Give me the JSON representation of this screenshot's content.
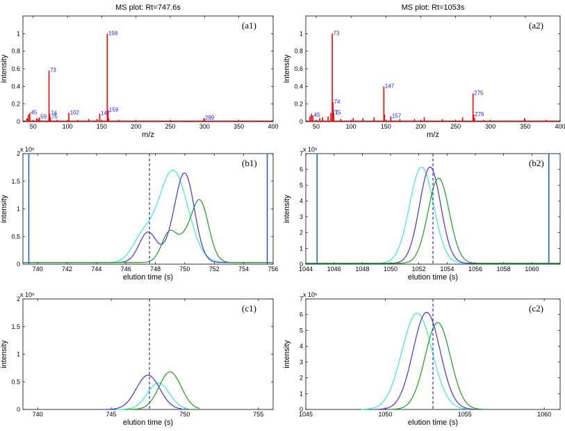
{
  "colors": {
    "stem": "#ff0000",
    "peak_label": "#1a1aff",
    "cyan": "#33f0c8",
    "purple": "#4b2be0",
    "green": "#1e9a1e",
    "marker": "#2233cc",
    "window": "#2e5cc8"
  },
  "chart_data": [
    {
      "id": "a1",
      "type": "stem",
      "title": "MS plot: Rt=747.6s",
      "tag": "(a1)",
      "xlabel": "m/z",
      "ylabel": "Intensity",
      "xlim": [
        35,
        400
      ],
      "ylim": [
        0,
        1.2
      ],
      "xticks": [
        50,
        100,
        150,
        200,
        250,
        300,
        350,
        400
      ],
      "xticklabels": [
        "50",
        "100",
        "150",
        "200",
        "250",
        "300",
        "350",
        "400"
      ],
      "yticks": [
        0,
        0.2,
        0.4,
        0.6,
        0.8,
        1
      ],
      "yticklabels": [
        "0",
        "0.2",
        "0.4",
        "0.6",
        "0.8",
        "1"
      ],
      "peaks": [
        {
          "mz": 41,
          "y": 0.04
        },
        {
          "mz": 42,
          "y": 0.03
        },
        {
          "mz": 43,
          "y": 0.08
        },
        {
          "mz": 45,
          "y": 0.1
        },
        {
          "mz": 55,
          "y": 0.04
        },
        {
          "mz": 57,
          "y": 0.03
        },
        {
          "mz": 59,
          "y": 0.05
        },
        {
          "mz": 73,
          "y": 0.58
        },
        {
          "mz": 74,
          "y": 0.09
        },
        {
          "mz": 75,
          "y": 0.05
        },
        {
          "mz": 85,
          "y": 0.02
        },
        {
          "mz": 102,
          "y": 0.1
        },
        {
          "mz": 115,
          "y": 0.02
        },
        {
          "mz": 131,
          "y": 0.03
        },
        {
          "mz": 143,
          "y": 0.03
        },
        {
          "mz": 147,
          "y": 0.09
        },
        {
          "mz": 158,
          "y": 1.0
        },
        {
          "mz": 159,
          "y": 0.13
        },
        {
          "mz": 160,
          "y": 0.04
        },
        {
          "mz": 175,
          "y": 0.02
        },
        {
          "mz": 200,
          "y": 0.01
        },
        {
          "mz": 230,
          "y": 0.01
        },
        {
          "mz": 270,
          "y": 0.01
        },
        {
          "mz": 299,
          "y": 0.04
        },
        {
          "mz": 300,
          "y": 0.02
        },
        {
          "mz": 340,
          "y": 0.01
        },
        {
          "mz": 380,
          "y": 0.01
        }
      ],
      "labels": [
        {
          "text": "45",
          "mz": 45,
          "y": 0.1
        },
        {
          "text": "59",
          "mz": 59,
          "y": 0.05
        },
        {
          "text": "73",
          "mz": 73,
          "y": 0.58
        },
        {
          "text": "74",
          "mz": 74,
          "y": 0.09
        },
        {
          "text": "75",
          "mz": 75,
          "y": 0.05
        },
        {
          "text": "102",
          "mz": 102,
          "y": 0.1
        },
        {
          "text": "147",
          "mz": 147,
          "y": 0.09
        },
        {
          "text": "158",
          "mz": 158,
          "y": 1.0
        },
        {
          "text": "159",
          "mz": 159,
          "y": 0.13
        },
        {
          "text": "299",
          "mz": 299,
          "y": 0.04
        }
      ]
    },
    {
      "id": "a2",
      "type": "stem",
      "title": "MS plot: Rt=1053s",
      "tag": "(a2)",
      "xlabel": "m/z",
      "ylabel": "Intensity",
      "xlim": [
        35,
        400
      ],
      "ylim": [
        0,
        1.2
      ],
      "xticks": [
        50,
        100,
        150,
        200,
        250,
        300,
        350,
        400
      ],
      "xticklabels": [
        "50",
        "100",
        "150",
        "200",
        "250",
        "300",
        "350",
        "400"
      ],
      "yticks": [
        0,
        0.2,
        0.4,
        0.6,
        0.8,
        1
      ],
      "yticklabels": [
        "0",
        "0.2",
        "0.4",
        "0.6",
        "0.8",
        "1"
      ],
      "peaks": [
        {
          "mz": 41,
          "y": 0.06
        },
        {
          "mz": 43,
          "y": 0.09
        },
        {
          "mz": 45,
          "y": 0.07
        },
        {
          "mz": 55,
          "y": 0.04
        },
        {
          "mz": 59,
          "y": 0.05
        },
        {
          "mz": 67,
          "y": 0.06
        },
        {
          "mz": 71,
          "y": 0.1
        },
        {
          "mz": 73,
          "y": 1.0
        },
        {
          "mz": 74,
          "y": 0.22
        },
        {
          "mz": 75,
          "y": 0.1
        },
        {
          "mz": 85,
          "y": 0.03
        },
        {
          "mz": 103,
          "y": 0.04
        },
        {
          "mz": 117,
          "y": 0.04
        },
        {
          "mz": 133,
          "y": 0.05
        },
        {
          "mz": 147,
          "y": 0.4
        },
        {
          "mz": 148,
          "y": 0.08
        },
        {
          "mz": 157,
          "y": 0.06
        },
        {
          "mz": 170,
          "y": 0.03
        },
        {
          "mz": 191,
          "y": 0.03
        },
        {
          "mz": 205,
          "y": 0.05
        },
        {
          "mz": 231,
          "y": 0.03
        },
        {
          "mz": 260,
          "y": 0.05
        },
        {
          "mz": 275,
          "y": 0.32
        },
        {
          "mz": 276,
          "y": 0.08
        },
        {
          "mz": 277,
          "y": 0.04
        },
        {
          "mz": 290,
          "y": 0.02
        },
        {
          "mz": 349,
          "y": 0.04
        },
        {
          "mz": 380,
          "y": 0.02
        }
      ],
      "labels": [
        {
          "text": "45",
          "mz": 45,
          "y": 0.07
        },
        {
          "text": "71",
          "mz": 71,
          "y": 0.1
        },
        {
          "text": "73",
          "mz": 73,
          "y": 1.0
        },
        {
          "text": "74",
          "mz": 74,
          "y": 0.22
        },
        {
          "text": "75",
          "mz": 75,
          "y": 0.1
        },
        {
          "text": "147",
          "mz": 147,
          "y": 0.4
        },
        {
          "text": "157",
          "mz": 157,
          "y": 0.06
        },
        {
          "text": "275",
          "mz": 275,
          "y": 0.32
        },
        {
          "text": "276",
          "mz": 276,
          "y": 0.08
        }
      ]
    },
    {
      "id": "b1",
      "type": "line",
      "tag": "(b1)",
      "xlabel": "elution time (s)",
      "ylabel": "intensity",
      "exponent": "x 10⁶",
      "xlim": [
        739,
        756
      ],
      "ylim": [
        0,
        2
      ],
      "xticks": [
        740,
        742,
        744,
        746,
        748,
        750,
        752,
        754,
        756
      ],
      "xticklabels": [
        "740",
        "742",
        "744",
        "746",
        "748",
        "750",
        "752",
        "754",
        "756"
      ],
      "yticks": [
        0,
        0.5,
        1,
        1.5,
        2
      ],
      "yticklabels": [
        "0",
        "0.5",
        "1",
        "1.5",
        "2"
      ],
      "baseline": 0.03,
      "marker_x": 747.6,
      "window_x": [
        739.4,
        755.6
      ],
      "series": [
        {
          "name": "cyan",
          "color_key": "cyan",
          "peaks": [
            [
              749.2,
              1.67,
              1.0
            ],
            [
              747.1,
              0.4,
              0.7
            ]
          ]
        },
        {
          "name": "purple",
          "color_key": "purple",
          "peaks": [
            [
              747.5,
              0.55,
              0.6
            ],
            [
              750.0,
              1.6,
              0.65
            ],
            [
              749.0,
              0.15,
              0.5
            ]
          ]
        },
        {
          "name": "green",
          "color_key": "green",
          "peaks": [
            [
              749.0,
              0.57,
              0.55
            ],
            [
              751.0,
              1.13,
              0.6
            ],
            [
              750.0,
              0.2,
              0.4
            ]
          ]
        }
      ]
    },
    {
      "id": "b2",
      "type": "line",
      "tag": "(b2)",
      "xlabel": "elution time (s)",
      "ylabel": "intensity",
      "exponent": "x 10⁶",
      "xlim": [
        1044,
        1062
      ],
      "ylim": [
        0,
        7
      ],
      "xticks": [
        1044,
        1046,
        1048,
        1050,
        1052,
        1054,
        1056,
        1058,
        1060
      ],
      "xticklabels": [
        "1044",
        "1046",
        "1048",
        "1050",
        "1052",
        "1054",
        "1056",
        "1058",
        "1060"
      ],
      "yticks": [
        0,
        1,
        2,
        3,
        4,
        5,
        6,
        7
      ],
      "yticklabels": [
        "0",
        "1",
        "2",
        "3",
        "4",
        "5",
        "6",
        "7"
      ],
      "baseline": 0.05,
      "marker_x": 1053.0,
      "window_x": [
        1044.8,
        1061.2
      ],
      "series": [
        {
          "name": "cyan",
          "color_key": "cyan",
          "peaks": [
            [
              1052.2,
              6.1,
              0.85
            ]
          ]
        },
        {
          "name": "purple",
          "color_key": "purple",
          "peaks": [
            [
              1052.8,
              6.1,
              0.75
            ]
          ]
        },
        {
          "name": "green",
          "color_key": "green",
          "peaks": [
            [
              1053.4,
              5.4,
              0.75
            ]
          ]
        }
      ]
    },
    {
      "id": "c1",
      "type": "line",
      "tag": "(c1)",
      "xlabel": "elution time (s)",
      "ylabel": "intensity",
      "exponent": "x 10⁶",
      "xlim": [
        739,
        756
      ],
      "ylim": [
        0,
        2
      ],
      "xticks": [
        740,
        745,
        750,
        755
      ],
      "xticklabels": [
        "740",
        "745",
        "750",
        "755"
      ],
      "yticks": [
        0,
        0.5,
        1,
        1.5,
        2
      ],
      "yticklabels": [
        "0",
        "0.5",
        "1",
        "1.5",
        "2"
      ],
      "baseline": 0,
      "marker_x": 747.6,
      "series": [
        {
          "name": "cyan",
          "color_key": "cyan",
          "peaks": [
            [
              748.2,
              0.48,
              0.75
            ]
          ],
          "range": [
            745.3,
            750.3
          ]
        },
        {
          "name": "purple",
          "color_key": "purple",
          "peaks": [
            [
              747.5,
              0.62,
              0.8
            ]
          ],
          "range": [
            744.6,
            749.8
          ]
        },
        {
          "name": "green",
          "color_key": "green",
          "peaks": [
            [
              749.0,
              0.68,
              0.75
            ]
          ],
          "range": [
            746.0,
            751.0
          ]
        }
      ]
    },
    {
      "id": "c2",
      "type": "line",
      "tag": "(c2)",
      "xlabel": "elution time (s)",
      "ylabel": "intensity",
      "exponent": "x 10⁶",
      "xlim": [
        1045,
        1061
      ],
      "ylim": [
        0,
        7
      ],
      "xticks": [
        1045,
        1050,
        1055,
        1060
      ],
      "xticklabels": [
        "1045",
        "1050",
        "1055",
        "1060"
      ],
      "yticks": [
        0,
        1,
        2,
        3,
        4,
        5,
        6,
        7
      ],
      "yticklabels": [
        "0",
        "1",
        "2",
        "3",
        "4",
        "5",
        "6",
        "7"
      ],
      "baseline": 0,
      "marker_x": 1053.0,
      "series": [
        {
          "name": "cyan",
          "color_key": "cyan",
          "peaks": [
            [
              1052.0,
              6.1,
              0.95
            ]
          ],
          "range": [
            1048.5,
            1055.3
          ]
        },
        {
          "name": "purple",
          "color_key": "purple",
          "peaks": [
            [
              1052.6,
              6.15,
              0.85
            ]
          ],
          "range": [
            1049.4,
            1055.6
          ]
        },
        {
          "name": "green",
          "color_key": "green",
          "peaks": [
            [
              1053.3,
              5.5,
              0.8
            ]
          ],
          "range": [
            1050.3,
            1056.3
          ]
        }
      ]
    }
  ]
}
